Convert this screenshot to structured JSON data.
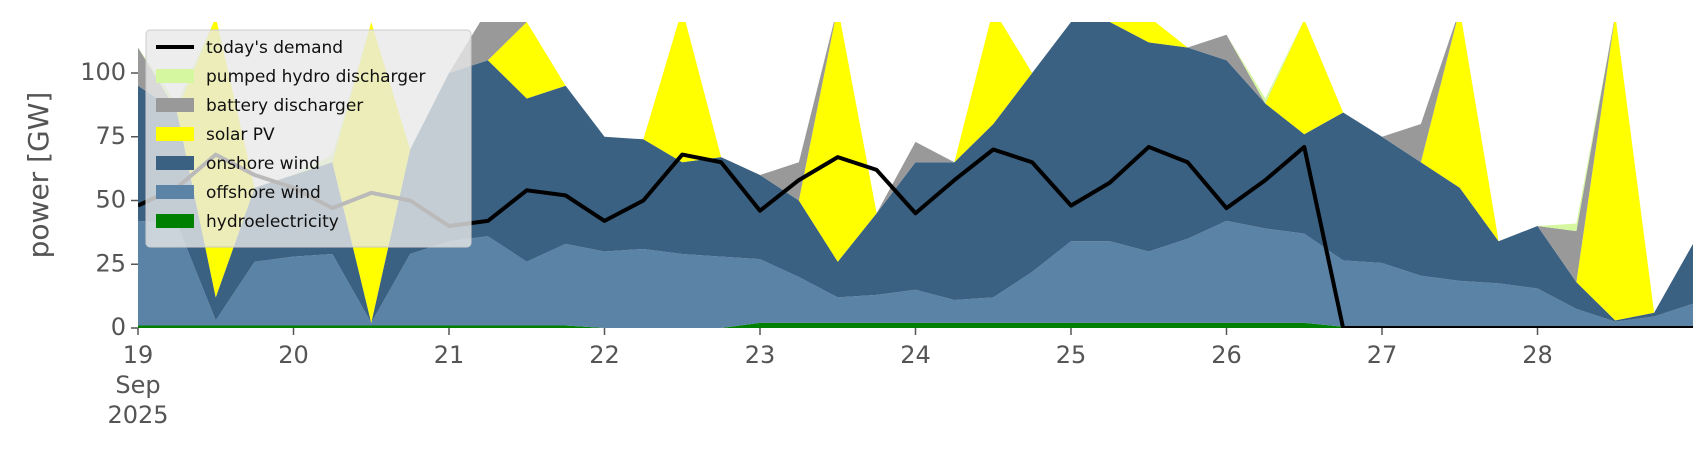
{
  "chart_data": {
    "type": "stacked-area",
    "y_label": "power [GW]",
    "x": [
      19,
      19.25,
      19.5,
      19.75,
      20,
      20.25,
      20.5,
      20.75,
      21,
      21.25,
      21.5,
      21.75,
      22,
      22.25,
      22.5,
      22.75,
      23,
      23.25,
      23.5,
      23.75,
      24,
      24.25,
      24.5,
      24.75,
      25,
      25.25,
      25.5,
      25.75,
      26,
      26.25,
      26.5,
      26.75,
      27,
      27.25,
      27.5,
      27.75,
      28,
      28.25,
      28.5,
      28.75,
      29
    ],
    "xlim": [
      19,
      29
    ],
    "xticks": [
      {
        "value": 19,
        "label": "19 Sep 2025"
      },
      20,
      21,
      22,
      23,
      24,
      25,
      26,
      27,
      28
    ],
    "ylim": [
      0,
      120
    ],
    "yticks": [
      0,
      25,
      50,
      75,
      100
    ],
    "legend": "upper left",
    "series": [
      {
        "name": "today's demand",
        "type": "line",
        "color": "#000000",
        "values": [
          48,
          55,
          68,
          60,
          55,
          47,
          53,
          50,
          40,
          42,
          54,
          52,
          42,
          50,
          68,
          65,
          46,
          58,
          67,
          62,
          45,
          58,
          70,
          65,
          48,
          57,
          71,
          65,
          47,
          58,
          71,
          0,
          0,
          0,
          0,
          0,
          0,
          0,
          0,
          0,
          0
        ]
      },
      {
        "name": "pumped hydro discharger",
        "type": "area",
        "color": "#d4f7a0",
        "values": [
          0,
          3,
          0,
          0,
          0,
          3,
          0,
          0,
          0,
          0,
          0,
          0,
          0,
          0,
          0,
          0,
          0,
          0,
          0,
          0,
          0,
          0,
          0,
          0,
          0,
          0,
          0,
          0,
          0,
          2,
          0,
          0,
          0,
          0,
          0,
          0,
          0,
          3,
          0,
          0,
          0
        ]
      },
      {
        "name": "battery discharger",
        "type": "area",
        "color": "#999999",
        "values": [
          15,
          0,
          0,
          0,
          0,
          0,
          0,
          0,
          0,
          20,
          0,
          0,
          0,
          0,
          0,
          0,
          0,
          15,
          0,
          0,
          8,
          0,
          0,
          0,
          0,
          0,
          0,
          0,
          10,
          0,
          0,
          0,
          0,
          15,
          0,
          0,
          0,
          20,
          0,
          0,
          0
        ]
      },
      {
        "name": "solar PV",
        "type": "area",
        "color": "#ffff00",
        "values": [
          0,
          0,
          110,
          0,
          0,
          0,
          118,
          0,
          0,
          0,
          30,
          0,
          0,
          0,
          60,
          0,
          0,
          0,
          100,
          0,
          0,
          0,
          45,
          0,
          0,
          0,
          10,
          0,
          0,
          0,
          45,
          0,
          0,
          0,
          70,
          0,
          0,
          0,
          120,
          0,
          0
        ]
      },
      {
        "name": "onshore wind",
        "type": "area",
        "color": "#3b6182",
        "values": [
          53,
          44,
          9,
          29,
          32,
          36,
          0,
          41,
          66,
          69,
          64,
          62,
          45,
          43,
          36,
          39,
          33,
          30,
          14,
          32,
          50,
          54,
          68,
          78,
          86,
          86,
          82,
          75,
          63,
          49,
          39,
          58,
          49.5,
          44.5,
          36.5,
          16.5,
          24.5,
          10.5,
          0.5,
          1.5,
          23.5
        ]
      },
      {
        "name": "offshore wind",
        "type": "area",
        "color": "#5b83a6",
        "values": [
          41,
          40,
          2,
          25,
          27,
          28,
          1,
          28,
          33,
          35,
          25,
          32,
          30,
          31,
          29,
          28,
          25,
          18,
          10,
          11,
          13,
          9,
          10,
          20,
          32,
          32,
          28,
          33,
          40,
          37,
          35,
          26,
          25,
          20,
          18,
          17,
          15,
          7,
          2,
          4,
          9
        ]
      },
      {
        "name": "hydroelectricity",
        "type": "area",
        "color": "#008000",
        "values": [
          1,
          1,
          1,
          1,
          1,
          1,
          1,
          1,
          1,
          1,
          1,
          1,
          0,
          0,
          0,
          0,
          2,
          2,
          2,
          2,
          2,
          2,
          2,
          2,
          2,
          2,
          2,
          2,
          2,
          2,
          2,
          0.5,
          0.5,
          0.5,
          0.5,
          0.5,
          0.5,
          0.5,
          0.5,
          0.5,
          0.5
        ]
      }
    ]
  }
}
